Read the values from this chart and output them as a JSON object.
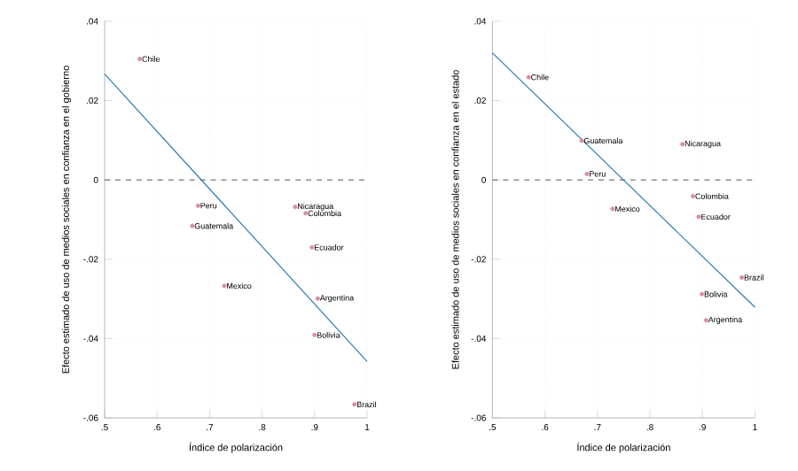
{
  "chart_data": [
    {
      "type": "scatter",
      "xlabel": "Índice de polarización",
      "ylabel": "Efecto estimado de uso de medios sociales en confianza en el gobierno",
      "grid": true,
      "xlim": [
        0.5,
        1
      ],
      "ylim": [
        -0.06,
        0.04
      ],
      "xticks": [
        {
          "value": 0.5,
          "label": ".5"
        },
        {
          "value": 0.6,
          "label": ".6"
        },
        {
          "value": 0.7,
          "label": ".7"
        },
        {
          "value": 0.8,
          "label": ".8"
        },
        {
          "value": 0.9,
          "label": ".9"
        },
        1
      ],
      "yticks": [
        {
          "value": -0.06,
          "label": "-.06"
        },
        {
          "value": -0.04,
          "label": "-.04"
        },
        {
          "value": -0.02,
          "label": "-.02"
        },
        0,
        {
          "value": 0.02,
          "label": ".02"
        },
        {
          "value": 0.04,
          "label": ".04"
        }
      ],
      "ref_lines": [
        {
          "axis": "y",
          "value": 0,
          "color": "#555555",
          "line_style": "dashed"
        }
      ],
      "series": [
        {
          "type": "scatter",
          "marker": "circle",
          "color": "#d98fa0",
          "x": [
            0.567,
            0.678,
            0.667,
            0.863,
            0.883,
            0.895,
            0.728,
            0.906,
            0.9,
            0.976
          ],
          "values": [
            0.0305,
            -0.0065,
            -0.0116,
            -0.0068,
            -0.0084,
            -0.017,
            -0.0267,
            -0.0299,
            -0.0391,
            -0.0566
          ]
        },
        {
          "type": "line",
          "color": "#2b7bb0",
          "marker": "none",
          "x": [
            0.5,
            1
          ],
          "values": [
            0.0267,
            -0.0458
          ]
        }
      ],
      "annotations": [
        {
          "text": "Chile",
          "x": 0.567,
          "y": 0.0305
        },
        {
          "text": "Peru",
          "x": 0.678,
          "y": -0.0065
        },
        {
          "text": "Guatemala",
          "x": 0.667,
          "y": -0.0116
        },
        {
          "text": "Nicaragua",
          "x": 0.863,
          "y": -0.0068
        },
        {
          "text": "Colombia",
          "x": 0.883,
          "y": -0.0084
        },
        {
          "text": "Ecuador",
          "x": 0.895,
          "y": -0.017
        },
        {
          "text": "Mexico",
          "x": 0.728,
          "y": -0.0267
        },
        {
          "text": "Argentina",
          "x": 0.906,
          "y": -0.0299
        },
        {
          "text": "Bolivia",
          "x": 0.9,
          "y": -0.0391
        },
        {
          "text": "Brazil",
          "x": 0.976,
          "y": -0.0566
        }
      ]
    },
    {
      "type": "scatter",
      "xlabel": "Índice de polarización",
      "ylabel": "Efecto estimado de uso de medios sociales en confianza en el estado",
      "grid": true,
      "xlim": [
        0.5,
        1
      ],
      "ylim": [
        -0.06,
        0.04
      ],
      "xticks": [
        {
          "value": 0.5,
          "label": ".5"
        },
        {
          "value": 0.6,
          "label": ".6"
        },
        {
          "value": 0.7,
          "label": ".7"
        },
        {
          "value": 0.8,
          "label": ".8"
        },
        {
          "value": 0.9,
          "label": ".9"
        },
        1
      ],
      "yticks": [
        {
          "value": -0.06,
          "label": "-.06"
        },
        {
          "value": -0.04,
          "label": "-.04"
        },
        {
          "value": -0.02,
          "label": "-.02"
        },
        0,
        {
          "value": 0.02,
          "label": ".02"
        },
        {
          "value": 0.04,
          "label": ".04"
        }
      ],
      "ref_lines": [
        {
          "axis": "y",
          "value": 0,
          "color": "#555555",
          "line_style": "dashed"
        }
      ],
      "series": [
        {
          "type": "scatter",
          "marker": "circle",
          "color": "#d98fa0",
          "x": [
            0.569,
            0.67,
            0.862,
            0.68,
            0.729,
            0.882,
            0.893,
            0.975,
            0.899,
            0.907
          ],
          "values": [
            0.0259,
            0.0099,
            0.009,
            0.0015,
            -0.0073,
            -0.0041,
            -0.0093,
            -0.0246,
            -0.0288,
            -0.0354
          ]
        },
        {
          "type": "line",
          "color": "#2b7bb0",
          "marker": "none",
          "x": [
            0.5,
            1
          ],
          "values": [
            0.032,
            -0.0321
          ]
        }
      ],
      "annotations": [
        {
          "text": "Chile",
          "x": 0.569,
          "y": 0.0259
        },
        {
          "text": "Guatemala",
          "x": 0.67,
          "y": 0.0099
        },
        {
          "text": "Nicaragua",
          "x": 0.862,
          "y": 0.009
        },
        {
          "text": "Peru",
          "x": 0.68,
          "y": 0.0015
        },
        {
          "text": "Mexico",
          "x": 0.729,
          "y": -0.0073
        },
        {
          "text": "Colombia",
          "x": 0.882,
          "y": -0.0041
        },
        {
          "text": "Ecuador",
          "x": 0.893,
          "y": -0.0093
        },
        {
          "text": "Brazil",
          "x": 0.975,
          "y": -0.0246
        },
        {
          "text": "Bolivia",
          "x": 0.899,
          "y": -0.0288
        },
        {
          "text": "Argentina",
          "x": 0.907,
          "y": -0.0354
        }
      ]
    }
  ]
}
